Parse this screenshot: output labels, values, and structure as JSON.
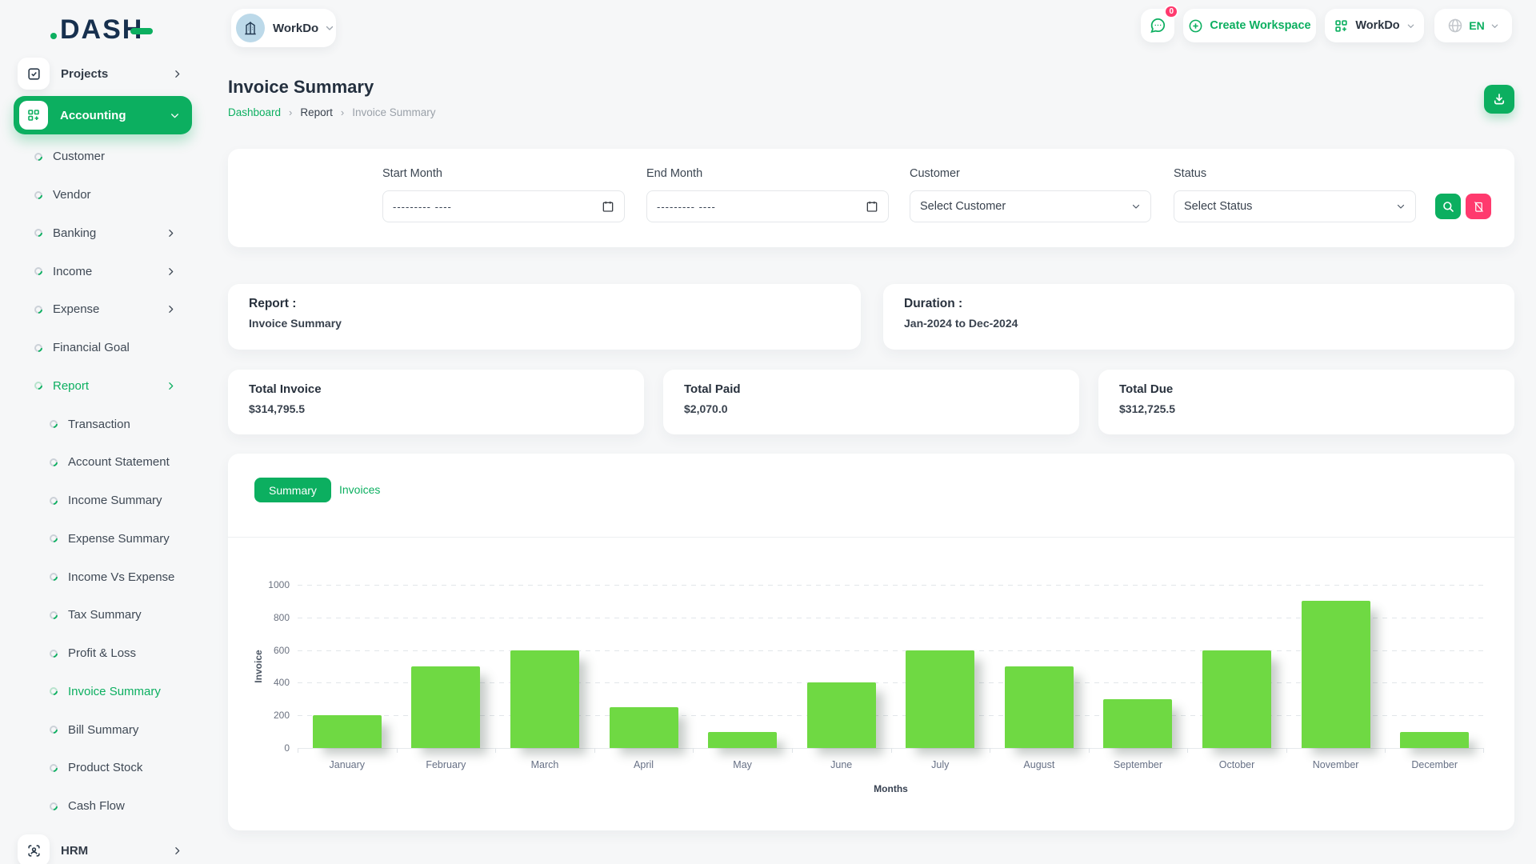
{
  "brand": {
    "name": "DASH",
    "accent_color": "#0caf60",
    "danger_color": "#ff3a6e"
  },
  "header": {
    "workspace_label": "WorkDo",
    "chat_badge": "0",
    "create_workspace": "Create Workspace",
    "app_menu_label": "WorkDo",
    "language": "EN"
  },
  "icons": {
    "header": [
      "chat-icon",
      "plus-circle-icon",
      "grid-plus-icon",
      "globe-icon",
      "chevron-down-icon"
    ],
    "page": [
      "download-icon"
    ],
    "filter_buttons": [
      "search-icon",
      "clear-filter-icon"
    ],
    "inputs": [
      "calendar-icon",
      "chevron-down-icon"
    ]
  },
  "sidebar": {
    "projects_label": "Projects",
    "accounting_label": "Accounting",
    "hrm_label": "HRM",
    "accounting_children": [
      {
        "label": "Customer",
        "level": 1
      },
      {
        "label": "Vendor",
        "level": 1
      },
      {
        "label": "Banking",
        "level": 1,
        "chevron": true
      },
      {
        "label": "Income",
        "level": 1,
        "chevron": true
      },
      {
        "label": "Expense",
        "level": 1,
        "chevron": true
      },
      {
        "label": "Financial Goal",
        "level": 1
      },
      {
        "label": "Report",
        "level": 1,
        "chevron": true,
        "active": true
      },
      {
        "label": "Transaction",
        "level": 2
      },
      {
        "label": "Account Statement",
        "level": 2
      },
      {
        "label": "Income Summary",
        "level": 2
      },
      {
        "label": "Expense Summary",
        "level": 2
      },
      {
        "label": "Income Vs Expense",
        "level": 2
      },
      {
        "label": "Tax Summary",
        "level": 2
      },
      {
        "label": "Profit & Loss",
        "level": 2
      },
      {
        "label": "Invoice Summary",
        "level": 2,
        "active": true
      },
      {
        "label": "Bill Summary",
        "level": 2
      },
      {
        "label": "Product Stock",
        "level": 2
      },
      {
        "label": "Cash Flow",
        "level": 2
      }
    ]
  },
  "page": {
    "title": "Invoice Summary",
    "breadcrumb": [
      "Dashboard",
      "Report",
      "Invoice Summary"
    ]
  },
  "filters": {
    "start_month_label": "Start Month",
    "end_month_label": "End Month",
    "month_placeholder": "--------- ----",
    "customer_label": "Customer",
    "customer_placeholder": "Select Customer",
    "status_label": "Status",
    "status_placeholder": "Select Status"
  },
  "report_info": {
    "label": "Report :",
    "value": "Invoice Summary"
  },
  "duration_info": {
    "label": "Duration :",
    "value": "Jan-2024 to Dec-2024"
  },
  "totals": [
    {
      "label": "Total Invoice",
      "value": "$314,795.5"
    },
    {
      "label": "Total Paid",
      "value": "$2,070.0"
    },
    {
      "label": "Total Due",
      "value": "$312,725.5"
    }
  ],
  "tabs": {
    "summary": "Summary",
    "invoices": "Invoices"
  },
  "chart_data": {
    "type": "bar",
    "title": "",
    "categories": [
      "January",
      "February",
      "March",
      "April",
      "May",
      "June",
      "July",
      "August",
      "September",
      "October",
      "November",
      "December"
    ],
    "values": [
      200,
      500,
      600,
      250,
      100,
      400,
      600,
      500,
      300,
      600,
      900,
      100
    ],
    "xlabel": "Months",
    "ylabel": "Invoice",
    "ylim": [
      0,
      1000
    ],
    "yticks": [
      0,
      200,
      400,
      600,
      800,
      1000
    ],
    "bar_color": "#6fd943",
    "grid": "dashed-horizontal",
    "legend": "none"
  }
}
